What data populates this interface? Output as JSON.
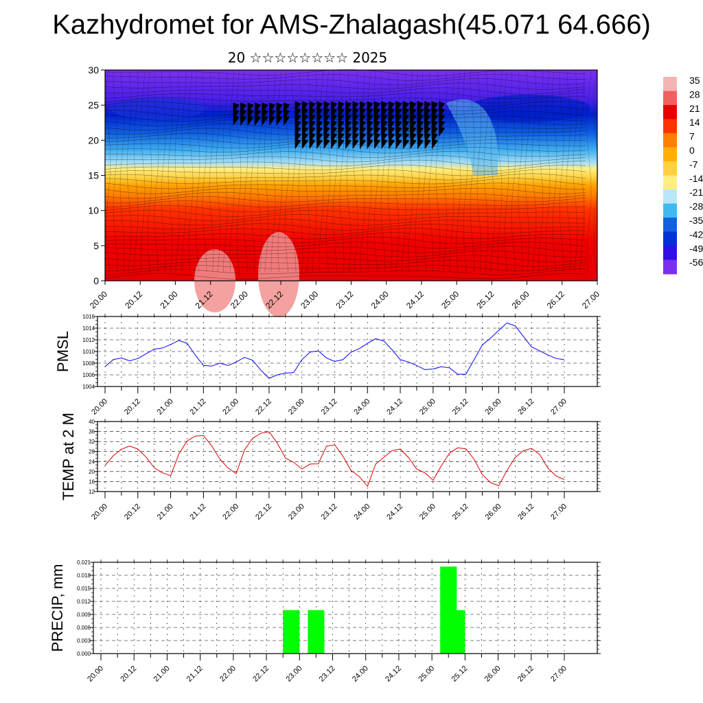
{
  "page": {
    "title": "Kazhydromet for AMS-Zhalagash(45.071 64.666)",
    "subtitle": "20 ☆☆☆☆☆☆☆☆ 2025"
  },
  "time_ticks": [
    "20.00",
    "20.12",
    "21.00",
    "21.12",
    "22.00",
    "22.12",
    "23.00",
    "23.12",
    "24.00",
    "24.12",
    "25.00",
    "25.12",
    "26.00",
    "26.12",
    "27.00"
  ],
  "colorbar": {
    "labels": [
      "35",
      "28",
      "21",
      "14",
      "7",
      "0",
      "-7",
      "-14",
      "-21",
      "-28",
      "-35",
      "-42",
      "-49",
      "-56"
    ],
    "colors": [
      "#f4b4b4",
      "#f06060",
      "#e60000",
      "#ff3300",
      "#ff8000",
      "#ffb000",
      "#ffd040",
      "#ffee80",
      "#b8e8f8",
      "#40b8f0",
      "#1060e0",
      "#0030d8",
      "#3010e8",
      "#7a30f0"
    ]
  },
  "chart_data": [
    {
      "type": "heatmap",
      "title": "",
      "xlabel": "",
      "ylabel": "",
      "xlim": [
        0,
        14
      ],
      "ylim": [
        0,
        30
      ],
      "y_ticks": [
        0,
        5,
        10,
        15,
        20,
        25,
        30
      ],
      "x_ticks": [
        "20.00",
        "20.12",
        "21.00",
        "21.12",
        "22.00",
        "22.12",
        "23.00",
        "23.12",
        "24.00",
        "24.12",
        "25.00",
        "25.12",
        "26.00",
        "26.12",
        "27.00"
      ],
      "color_scale_labels": [
        "35",
        "28",
        "21",
        "14",
        "7",
        "0",
        "-7",
        "-14",
        "-21",
        "-28",
        "-35",
        "-42",
        "-49",
        "-56"
      ]
    },
    {
      "type": "line",
      "ylabel": "PMSL",
      "ylim": [
        1004,
        1016
      ],
      "y_ticks": [
        "1016",
        "1014",
        "1012",
        "1010",
        "1008",
        "1006",
        "1004"
      ],
      "color": "#0000ff",
      "x": [
        0,
        0.5,
        1,
        1.5,
        2,
        2.5,
        3,
        3.5,
        4,
        4.5,
        5,
        5.5,
        6,
        6.5,
        7,
        7.5,
        8,
        8.5,
        9,
        9.5,
        10,
        10.5,
        11,
        11.5,
        12,
        12.5,
        13,
        13.5,
        14,
        14.5,
        15,
        15.5,
        16,
        16.5,
        17,
        17.5,
        18,
        18.5,
        19,
        19.5,
        20,
        20.5,
        21,
        21.5,
        22,
        22.5,
        23,
        23.5,
        24,
        24.5,
        25,
        25.5,
        26,
        26.5,
        27,
        27.5,
        28
      ],
      "values": [
        1007.4,
        1008.6,
        1008.9,
        1008.4,
        1008.8,
        1009.6,
        1010.4,
        1010.6,
        1011.2,
        1011.9,
        1011.4,
        1009.4,
        1007.6,
        1007.5,
        1008.0,
        1007.6,
        1008.2,
        1009.0,
        1008.5,
        1006.8,
        1005.4,
        1006.0,
        1006.3,
        1006.4,
        1008.6,
        1009.9,
        1010.1,
        1008.9,
        1008.3,
        1008.6,
        1009.9,
        1010.5,
        1011.4,
        1012.2,
        1011.8,
        1010.3,
        1008.6,
        1008.2,
        1007.6,
        1006.9,
        1007.0,
        1007.4,
        1007.2,
        1006.1,
        1006.1,
        1008.6,
        1011.1,
        1012.3,
        1013.6,
        1014.9,
        1014.4,
        1012.6,
        1010.8,
        1010.1,
        1009.4,
        1008.8,
        1008.6
      ]
    },
    {
      "type": "line",
      "ylabel": "TEMP at 2 M",
      "ylim": [
        12,
        40
      ],
      "y_ticks": [
        "40",
        "36",
        "32",
        "28",
        "24",
        "20",
        "16",
        "12"
      ],
      "color": "#dd0000",
      "x": [
        0,
        0.5,
        1,
        1.5,
        2,
        2.5,
        3,
        3.5,
        4,
        4.5,
        5,
        5.5,
        6,
        6.5,
        7,
        7.5,
        8,
        8.5,
        9,
        9.5,
        10,
        10.5,
        11,
        11.5,
        12,
        12.5,
        13,
        13.5,
        14,
        14.5,
        15,
        15.5,
        16,
        16.5,
        17,
        17.5,
        18,
        18.5,
        19,
        19.5,
        20,
        20.5,
        21,
        21.5,
        22,
        22.5,
        23,
        23.5,
        24,
        24.5,
        25,
        25.5,
        26,
        26.5,
        27,
        27.5,
        28
      ],
      "values": [
        22.4,
        26.3,
        28.9,
        30.2,
        29.0,
        25.8,
        21.5,
        19.5,
        18.3,
        27.0,
        32.2,
        34.2,
        34.4,
        30.3,
        25.0,
        21.4,
        19.2,
        28.7,
        33.3,
        35.3,
        35.9,
        31.4,
        25.4,
        23.7,
        21.0,
        23.0,
        23.1,
        30.2,
        30.7,
        26.2,
        20.4,
        18.0,
        14.1,
        23.0,
        25.7,
        28.4,
        29.0,
        25.6,
        21.0,
        19.5,
        16.5,
        22.3,
        27.4,
        29.5,
        29.1,
        24.9,
        18.8,
        15.6,
        14.3,
        20.4,
        25.6,
        28.3,
        29.3,
        26.8,
        21.4,
        18.2,
        16.8
      ]
    },
    {
      "type": "bar",
      "ylabel": "PRECIP, mm",
      "ylim": [
        0,
        0.021
      ],
      "y_ticks": [
        "0.021",
        "0.018",
        "0.015",
        "0.012",
        "0.009",
        "0.006",
        "0.003",
        "0.000"
      ],
      "color": "#00ff00",
      "bars": [
        {
          "x": 11.5,
          "value": 0.01
        },
        {
          "x": 13.0,
          "value": 0.01
        },
        {
          "x": 21.0,
          "value": 0.02
        },
        {
          "x": 21.5,
          "value": 0.01
        }
      ]
    }
  ]
}
